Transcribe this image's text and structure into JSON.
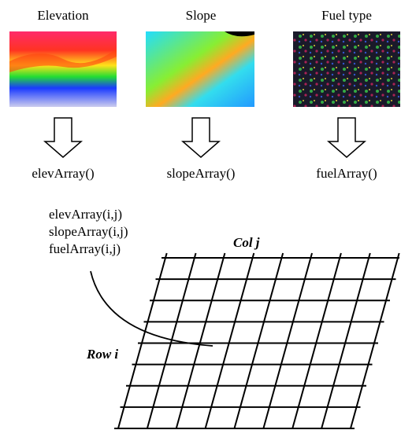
{
  "panels": [
    {
      "title": "Elevation",
      "array": "elevArray()"
    },
    {
      "title": "Slope",
      "array": "slopeArray()"
    },
    {
      "title": "Fuel type",
      "array": "fuelArray()"
    }
  ],
  "cell_labels": [
    "elevArray(i,j)",
    "slopeArray(i,j)",
    "fuelArray(i,j)"
  ],
  "grid": {
    "column_label": "Col j",
    "row_label": "Row i"
  }
}
